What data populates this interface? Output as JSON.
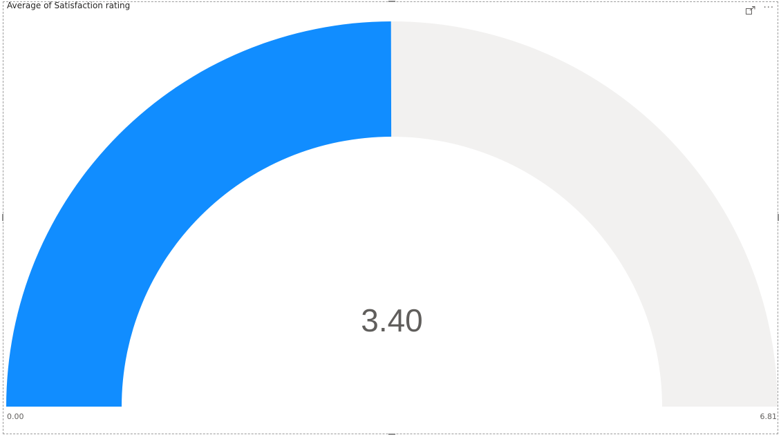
{
  "visual": {
    "title": "Average of Satisfaction rating"
  },
  "header_icons": {
    "focus": "focus-mode-icon",
    "more": "more-options-icon",
    "more_glyph": "···"
  },
  "chart_data": {
    "type": "gauge",
    "title": "Average of Satisfaction rating",
    "value": 3.4,
    "min": 0,
    "max": 6.81,
    "value_label": "3.40",
    "min_label": "0.00",
    "max_label": "6.81",
    "fill_color": "#118DFF",
    "track_color": "#F2F1F0"
  }
}
